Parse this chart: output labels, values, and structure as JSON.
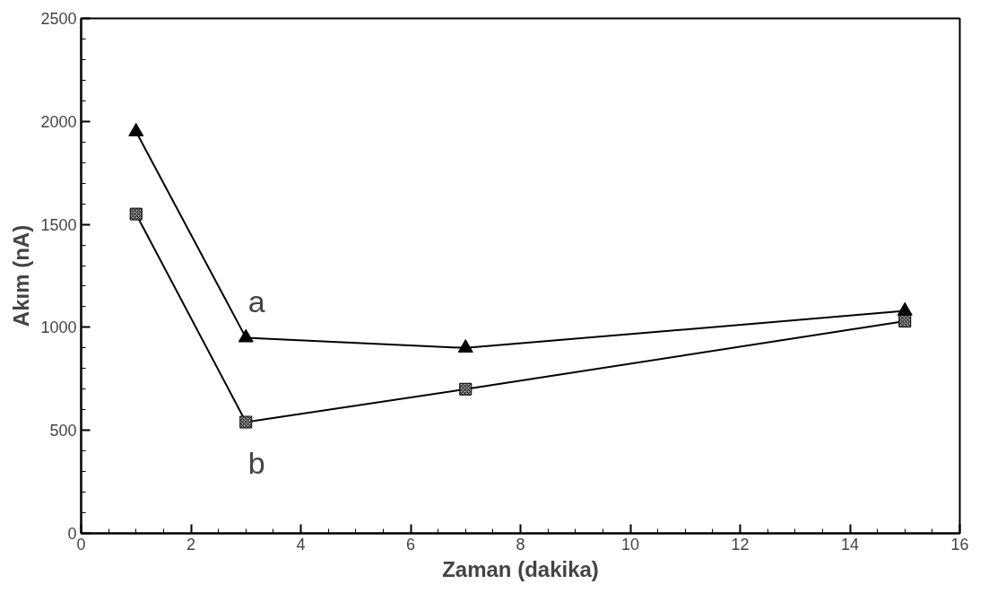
{
  "chart_data": {
    "type": "line",
    "xlabel": "Zaman (dakika)",
    "ylabel": "Akım (nA)",
    "x": [
      1,
      3,
      7,
      15
    ],
    "series": [
      {
        "name": "a",
        "color": "#000000",
        "marker": "triangle",
        "values": [
          1950,
          950,
          900,
          1080
        ]
      },
      {
        "name": "b",
        "color": "#000000",
        "marker": "square",
        "values": [
          1550,
          540,
          700,
          1030
        ]
      }
    ],
    "xlim": [
      0,
      16
    ],
    "xticks": [
      0,
      2,
      4,
      6,
      8,
      10,
      12,
      14,
      16
    ],
    "ylim": [
      0,
      2500
    ],
    "yticks": [
      0,
      500,
      1000,
      1500,
      2000,
      2500
    ],
    "grid": false
  }
}
